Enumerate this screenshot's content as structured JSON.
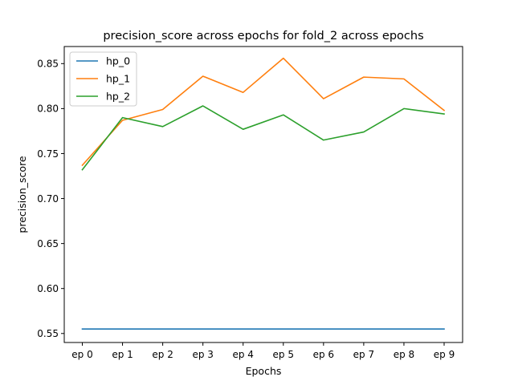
{
  "chart_data": {
    "type": "line",
    "title": "precision_score across epochs for fold_2 across epochs",
    "xlabel": "Epochs",
    "ylabel": "precision_score",
    "categories": [
      "ep 0",
      "ep 1",
      "ep 2",
      "ep 3",
      "ep 4",
      "ep 5",
      "ep 6",
      "ep 7",
      "ep 8",
      "ep 9"
    ],
    "ylim": [
      0.54,
      0.869
    ],
    "yticks": [
      0.55,
      0.6,
      0.65,
      0.7,
      0.75,
      0.8,
      0.85
    ],
    "ytick_labels": [
      "0.55",
      "0.60",
      "0.65",
      "0.70",
      "0.75",
      "0.80",
      "0.85"
    ],
    "grid": false,
    "legend_position": "top-left",
    "series": [
      {
        "name": "hp_0",
        "color": "#1f77b4",
        "values": [
          0.555,
          0.555,
          0.555,
          0.555,
          0.555,
          0.555,
          0.555,
          0.555,
          0.555,
          0.555
        ]
      },
      {
        "name": "hp_1",
        "color": "#ff7f0e",
        "values": [
          0.737,
          0.787,
          0.799,
          0.836,
          0.818,
          0.856,
          0.811,
          0.835,
          0.833,
          0.798
        ]
      },
      {
        "name": "hp_2",
        "color": "#2ca02c",
        "values": [
          0.732,
          0.79,
          0.78,
          0.803,
          0.777,
          0.793,
          0.765,
          0.774,
          0.8,
          0.794
        ]
      }
    ]
  }
}
